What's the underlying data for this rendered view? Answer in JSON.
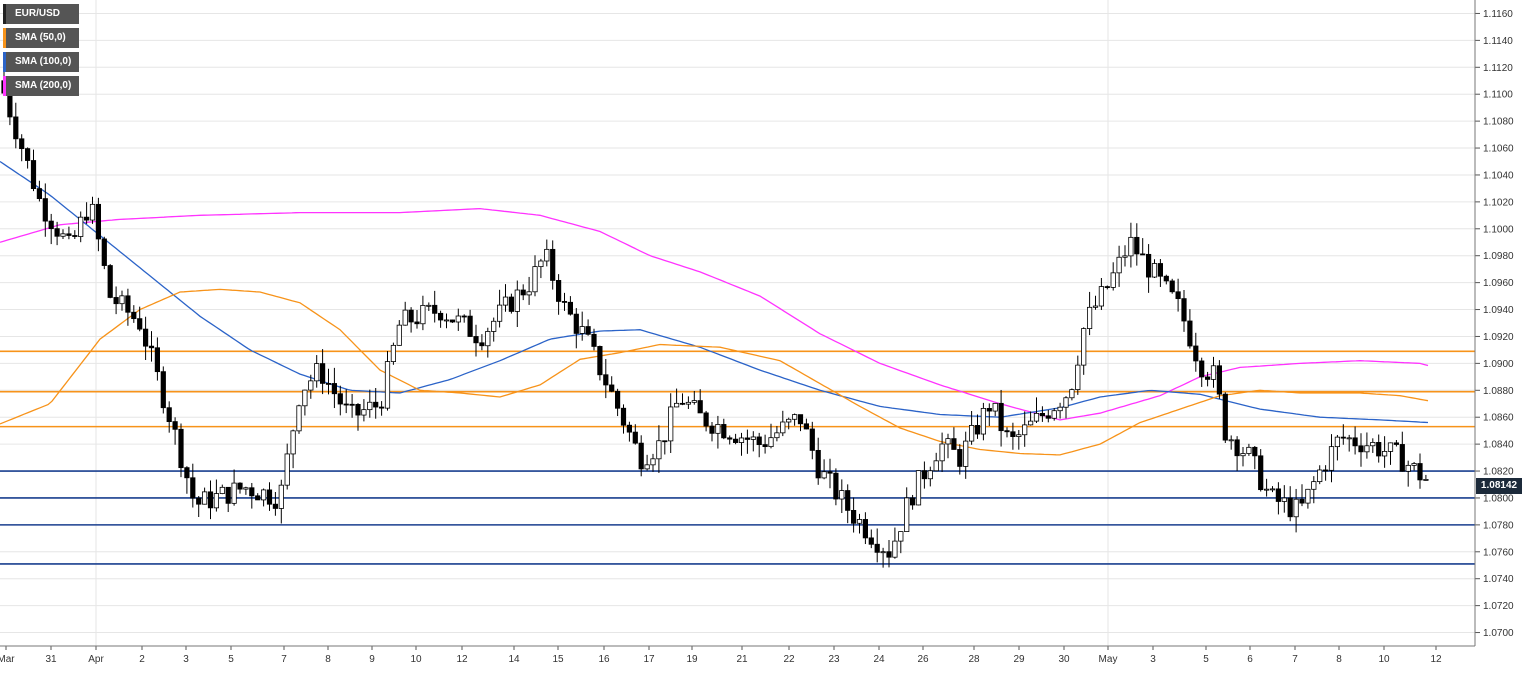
{
  "chart_data": {
    "type": "candlestick",
    "symbol": "EUR/USD",
    "current_price": "1.08142",
    "y_ticks": [
      "1.0700",
      "1.0720",
      "1.0740",
      "1.0760",
      "1.0780",
      "1.0800",
      "1.0820",
      "1.0840",
      "1.0860",
      "1.0880",
      "1.0900",
      "1.0920",
      "1.0940",
      "1.0960",
      "1.0980",
      "1.1000",
      "1.1020",
      "1.1040",
      "1.1060",
      "1.1080",
      "1.1100",
      "1.1120",
      "1.1140",
      "1.1160"
    ],
    "ylim": [
      1.069,
      1.117
    ],
    "x_ticks": [
      "Mar",
      "31",
      "Apr",
      "2",
      "3",
      "5",
      "7",
      "8",
      "9",
      "10",
      "12",
      "14",
      "15",
      "16",
      "17",
      "19",
      "21",
      "22",
      "23",
      "24",
      "26",
      "28",
      "29",
      "30",
      "May",
      "3",
      "5",
      "6",
      "7",
      "8",
      "10",
      "12"
    ],
    "month_separators": [
      "Apr",
      "May"
    ],
    "legend": [
      {
        "label": "EUR/USD",
        "color": "#222222"
      },
      {
        "label": "SMA (50,0)",
        "color": "#f7931a"
      },
      {
        "label": "SMA (100,0)",
        "color": "#2b63c8"
      },
      {
        "label": "SMA (200,0)",
        "color": "#ff33ff"
      }
    ],
    "resistance_levels": [
      1.0909,
      1.0879,
      1.0853
    ],
    "support_levels": [
      1.082,
      1.08,
      1.078,
      1.0751
    ],
    "colors": {
      "bull": "#ffffff",
      "bear": "#000000",
      "resistance": "#f7931a",
      "support": "#1a3f8f",
      "grid": "#e6e6e6"
    },
    "sma200_anchors": [
      [
        0,
        1.099
      ],
      [
        60,
        1.1003
      ],
      [
        120,
        1.1007
      ],
      [
        200,
        1.101
      ],
      [
        300,
        1.1012
      ],
      [
        400,
        1.1012
      ],
      [
        480,
        1.1015
      ],
      [
        540,
        1.101
      ],
      [
        600,
        1.0998
      ],
      [
        650,
        1.098
      ],
      [
        700,
        1.0968
      ],
      [
        760,
        1.095
      ],
      [
        820,
        1.0922
      ],
      [
        880,
        1.09
      ],
      [
        940,
        1.0884
      ],
      [
        1000,
        1.087
      ],
      [
        1060,
        1.0858
      ],
      [
        1100,
        1.0863
      ],
      [
        1160,
        1.0876
      ],
      [
        1200,
        1.089
      ],
      [
        1240,
        1.0897
      ],
      [
        1300,
        1.09
      ],
      [
        1360,
        1.0902
      ],
      [
        1420,
        1.09
      ],
      [
        1430,
        1.0898
      ]
    ],
    "sma100_anchors": [
      [
        0,
        1.105
      ],
      [
        50,
        1.1025
      ],
      [
        100,
        1.0995
      ],
      [
        150,
        1.0965
      ],
      [
        200,
        1.0935
      ],
      [
        250,
        1.091
      ],
      [
        300,
        1.0892
      ],
      [
        350,
        1.088
      ],
      [
        400,
        1.0878
      ],
      [
        450,
        1.0888
      ],
      [
        500,
        1.0902
      ],
      [
        550,
        1.0918
      ],
      [
        600,
        1.0924
      ],
      [
        640,
        1.0925
      ],
      [
        700,
        1.0912
      ],
      [
        760,
        1.0895
      ],
      [
        820,
        1.088
      ],
      [
        880,
        1.0868
      ],
      [
        940,
        1.0862
      ],
      [
        1000,
        1.086
      ],
      [
        1060,
        1.0867
      ],
      [
        1100,
        1.0875
      ],
      [
        1150,
        1.088
      ],
      [
        1200,
        1.0877
      ],
      [
        1260,
        1.0866
      ],
      [
        1320,
        1.086
      ],
      [
        1380,
        1.0858
      ],
      [
        1430,
        1.0856
      ]
    ],
    "sma50_anchors": [
      [
        0,
        1.0855
      ],
      [
        50,
        1.087
      ],
      [
        100,
        1.0918
      ],
      [
        140,
        1.094
      ],
      [
        180,
        1.0953
      ],
      [
        220,
        1.0955
      ],
      [
        260,
        1.0953
      ],
      [
        300,
        1.0945
      ],
      [
        340,
        1.0925
      ],
      [
        380,
        1.0895
      ],
      [
        420,
        1.088
      ],
      [
        460,
        1.0878
      ],
      [
        500,
        1.0875
      ],
      [
        540,
        1.0884
      ],
      [
        580,
        1.0903
      ],
      [
        620,
        1.0908
      ],
      [
        660,
        1.0914
      ],
      [
        720,
        1.0912
      ],
      [
        780,
        1.0902
      ],
      [
        820,
        1.0885
      ],
      [
        860,
        1.0868
      ],
      [
        900,
        1.0852
      ],
      [
        940,
        1.0842
      ],
      [
        980,
        1.0836
      ],
      [
        1020,
        1.0833
      ],
      [
        1060,
        1.0832
      ],
      [
        1100,
        1.084
      ],
      [
        1140,
        1.0856
      ],
      [
        1180,
        1.0866
      ],
      [
        1220,
        1.0876
      ],
      [
        1260,
        1.088
      ],
      [
        1300,
        1.0878
      ],
      [
        1360,
        1.0878
      ],
      [
        1400,
        1.0876
      ],
      [
        1430,
        1.0872
      ]
    ],
    "candle_anchors": [
      [
        0,
        1.111
      ],
      [
        40,
        1.102
      ],
      [
        70,
        1.0985
      ],
      [
        90,
        1.102
      ],
      [
        110,
        1.095
      ],
      [
        140,
        1.093
      ],
      [
        170,
        1.086
      ],
      [
        195,
        1.0795
      ],
      [
        215,
        1.08
      ],
      [
        245,
        1.0808
      ],
      [
        280,
        1.08
      ],
      [
        300,
        1.088
      ],
      [
        320,
        1.0895
      ],
      [
        350,
        1.086
      ],
      [
        380,
        1.087
      ],
      [
        400,
        1.093
      ],
      [
        440,
        1.094
      ],
      [
        480,
        1.092
      ],
      [
        510,
        1.0945
      ],
      [
        530,
        1.096
      ],
      [
        545,
        1.098
      ],
      [
        565,
        1.094
      ],
      [
        585,
        1.092
      ],
      [
        610,
        1.088
      ],
      [
        640,
        1.083
      ],
      [
        660,
        1.084
      ],
      [
        680,
        1.0875
      ],
      [
        700,
        1.086
      ],
      [
        730,
        1.085
      ],
      [
        760,
        1.084
      ],
      [
        800,
        1.086
      ],
      [
        820,
        1.082
      ],
      [
        850,
        1.079
      ],
      [
        875,
        1.077
      ],
      [
        890,
        1.076
      ],
      [
        910,
        1.08
      ],
      [
        940,
        1.084
      ],
      [
        960,
        1.083
      ],
      [
        990,
        1.087
      ],
      [
        1010,
        1.084
      ],
      [
        1040,
        1.086
      ],
      [
        1070,
        1.088
      ],
      [
        1085,
        1.093
      ],
      [
        1110,
        1.096
      ],
      [
        1130,
        1.099
      ],
      [
        1150,
        1.097
      ],
      [
        1180,
        1.094
      ],
      [
        1200,
        1.09
      ],
      [
        1215,
        1.089
      ],
      [
        1225,
        1.085
      ],
      [
        1250,
        1.083
      ],
      [
        1270,
        1.08
      ],
      [
        1300,
        1.079
      ],
      [
        1320,
        1.082
      ],
      [
        1340,
        1.0845
      ],
      [
        1370,
        1.084
      ],
      [
        1400,
        1.083
      ],
      [
        1425,
        1.0814
      ]
    ]
  }
}
